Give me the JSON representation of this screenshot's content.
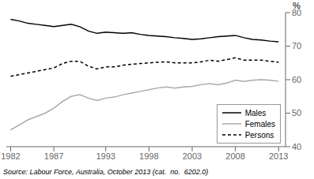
{
  "chart_data": {
    "type": "line",
    "y_label": "%",
    "annotations": [
      "Source: Labour Force, Australia, October 2013 (cat.  no.  6202.0)"
    ],
    "x": [
      1982,
      1983,
      1984,
      1985,
      1986,
      1987,
      1988,
      1989,
      1990,
      1991,
      1992,
      1993,
      1994,
      1995,
      1996,
      1997,
      1998,
      1999,
      2000,
      2001,
      2002,
      2003,
      2004,
      2005,
      2006,
      2007,
      2008,
      2009,
      2010,
      2011,
      2012,
      2013
    ],
    "series": [
      {
        "name": "Males",
        "color": "#000000",
        "line_style": "solid",
        "values": [
          78.0,
          77.5,
          76.8,
          76.5,
          76.2,
          75.8,
          76.2,
          76.5,
          75.8,
          74.5,
          73.8,
          74.2,
          74.0,
          73.8,
          74.0,
          73.5,
          73.2,
          73.0,
          72.8,
          72.5,
          72.3,
          72.0,
          72.2,
          72.5,
          72.8,
          73.0,
          73.2,
          72.5,
          72.0,
          71.8,
          71.5,
          71.3
        ]
      },
      {
        "name": "Females",
        "color": "#aaaaaa",
        "line_style": "solid",
        "values": [
          45.0,
          46.5,
          48.0,
          49.0,
          50.0,
          51.5,
          53.5,
          55.0,
          55.5,
          54.5,
          53.8,
          54.5,
          54.8,
          55.5,
          56.0,
          56.5,
          57.0,
          57.5,
          57.8,
          57.5,
          57.8,
          58.0,
          58.5,
          58.8,
          58.5,
          59.0,
          59.8,
          59.5,
          59.8,
          60.0,
          59.8,
          59.5
        ]
      },
      {
        "name": "Persons",
        "color": "#000000",
        "line_style": "dashed",
        "values": [
          61.0,
          61.5,
          62.0,
          62.5,
          63.0,
          63.5,
          64.8,
          65.5,
          65.5,
          64.0,
          63.2,
          63.8,
          63.8,
          64.3,
          64.6,
          64.8,
          65.0,
          65.2,
          65.3,
          65.0,
          65.0,
          65.0,
          65.3,
          65.8,
          65.5,
          66.0,
          66.5,
          65.8,
          65.8,
          65.8,
          65.5,
          65.2
        ]
      }
    ],
    "xlim": [
      1981.5,
      2013.8
    ],
    "xticks": [
      1982,
      1987,
      1993,
      1998,
      2003,
      2008,
      2013
    ],
    "ylim": [
      40,
      80
    ],
    "yticks": [
      40,
      50,
      60,
      70,
      80
    ],
    "grid": false,
    "legend": "lower right"
  }
}
